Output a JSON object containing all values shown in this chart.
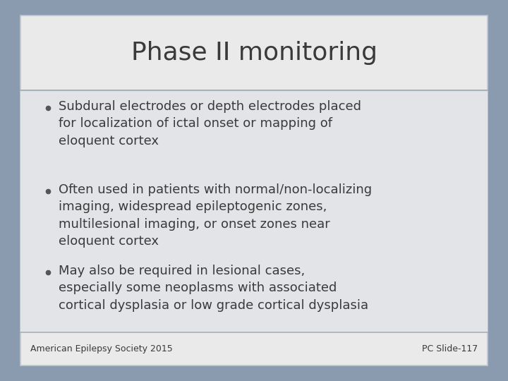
{
  "title": "Phase II monitoring",
  "title_fontsize": 26,
  "title_color": "#3a3a3a",
  "background_outer": "#8a9bb0",
  "background_slide": "#eaeaea",
  "background_body": "#e2e4e7",
  "divider_color": "#a8b0b8",
  "text_color": "#3a3a3a",
  "bullet_color": "#555555",
  "footer_left": "American Epilepsy Society 2015",
  "footer_right": "PC Slide-117",
  "footer_fontsize": 9,
  "body_fontsize": 13,
  "bullets": [
    "Subdural electrodes or depth electrodes placed\nfor localization of ictal onset or mapping of\neloquent cortex",
    "Often used in patients with normal/non-localizing\nimaging, widespread epileptogenic zones,\nmultilesional imaging, or onset zones near\neloquent cortex",
    "May also be required in lesional cases,\nespecially some neoplasms with associated\ncortical dysplasia or low grade cortical dysplasia"
  ]
}
